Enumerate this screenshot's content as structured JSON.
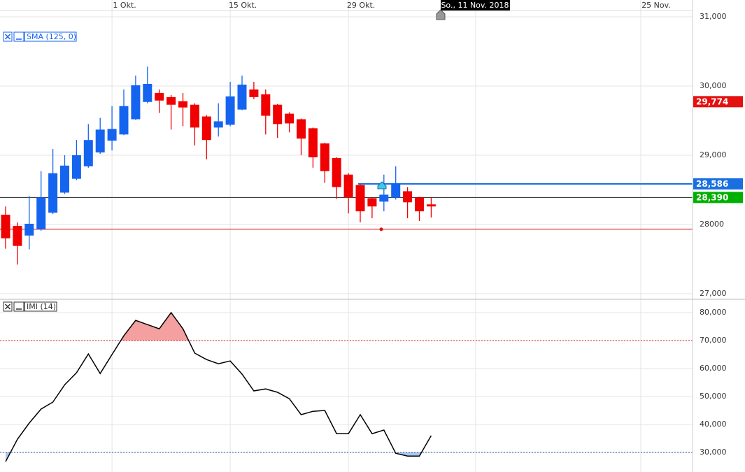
{
  "chart_data": {
    "type": "candlestick",
    "categories": [
      null,
      null,
      null,
      null,
      null,
      null,
      null,
      null,
      null,
      "1 Okt.",
      null,
      null,
      null,
      null,
      null,
      null,
      null,
      null,
      null,
      "15 Okt.",
      null,
      null,
      null,
      null,
      null,
      null,
      null,
      null,
      null,
      "29 Okt.",
      null,
      null,
      null,
      null,
      null,
      null,
      null
    ],
    "future_labels": [
      "So., 11 Nov. 2018",
      "25 Nov."
    ],
    "series": [
      {
        "name": "SMA (125, 0)",
        "open": [
          28140,
          27980,
          27840,
          27930,
          28170,
          28460,
          28660,
          28840,
          29040,
          29210,
          29300,
          29520,
          29770,
          29900,
          29840,
          29780,
          29730,
          29560,
          29400,
          29440,
          29660,
          29950,
          29880,
          29730,
          29600,
          29520,
          29390,
          29170,
          28960,
          28720,
          28570,
          28380,
          28330,
          28390,
          28480,
          28390,
          28290
        ],
        "high": [
          28260,
          28030,
          28410,
          28770,
          29090,
          29000,
          29220,
          29450,
          29540,
          29710,
          29950,
          30150,
          30280,
          29950,
          29870,
          29900,
          29750,
          29580,
          29750,
          30060,
          30150,
          30060,
          29950,
          29740,
          29620,
          29530,
          29400,
          29180,
          28970,
          28740,
          28580,
          28390,
          28720,
          28840,
          28540,
          28400,
          28390
        ],
        "low": [
          27650,
          27420,
          27640,
          27910,
          28150,
          28440,
          28640,
          28820,
          29020,
          29070,
          29290,
          29510,
          29750,
          29610,
          29370,
          29420,
          29140,
          28940,
          29270,
          29420,
          29650,
          29810,
          29300,
          29250,
          29330,
          29000,
          28820,
          28600,
          28370,
          28160,
          28030,
          28090,
          28190,
          28360,
          28090,
          28050,
          28100
        ],
        "close": [
          27800,
          27690,
          28010,
          28390,
          28740,
          28850,
          29000,
          29220,
          29370,
          29380,
          29710,
          30010,
          30030,
          29790,
          29730,
          29690,
          29400,
          29220,
          29490,
          29850,
          30020,
          29840,
          29570,
          29450,
          29460,
          29240,
          28970,
          28770,
          28540,
          28390,
          28190,
          28260,
          28430,
          28590,
          28320,
          28190,
          28260
        ],
        "up_color": "#1464f0",
        "down_color": "#f00000"
      }
    ],
    "levels": [
      {
        "value": 28586,
        "label": "28,586",
        "color": "#1a6fe0"
      },
      {
        "value": 28390,
        "label": "28,390",
        "color": "#00b000"
      },
      {
        "value": 29774,
        "label": "29,774",
        "color": "#e51010"
      }
    ],
    "stop_line": 27930,
    "ylim": [
      26919,
      31101
    ],
    "yticks": [
      {
        "value": 31000,
        "label": "31,000"
      },
      {
        "value": 30000,
        "label": "30,000"
      },
      {
        "value": 29000,
        "label": "29,000"
      },
      28000,
      {
        "value": 27000,
        "label": "27,000"
      }
    ],
    "indicator": {
      "name": "IMI (14)",
      "values": [
        26.7,
        34.7,
        40.5,
        45.5,
        48,
        54.2,
        58.5,
        65.2,
        58.2,
        65,
        71.7,
        77.2,
        75.7,
        74.2,
        80,
        74.2,
        65.5,
        63.2,
        61.7,
        62.7,
        58,
        52,
        52.7,
        51.5,
        49.2,
        43.5,
        44.7,
        45,
        36.7,
        36.7,
        43.5,
        36.7,
        38,
        29.7,
        28.7,
        28.7,
        36
      ],
      "upper": 70,
      "lower": 30,
      "upper_color": "#f4a0a0",
      "lower_color": "#a8c8f0",
      "ylim": [
        24.75,
        84.25
      ],
      "yticks": [
        {
          "value": 80,
          "label": "80,000"
        },
        {
          "value": 70,
          "label": "70,000"
        },
        {
          "value": 60,
          "label": "60,000"
        },
        {
          "value": 50,
          "label": "50,000"
        },
        {
          "value": 40,
          "label": "40,000"
        },
        {
          "value": 30,
          "label": "30,000"
        }
      ]
    }
  }
}
